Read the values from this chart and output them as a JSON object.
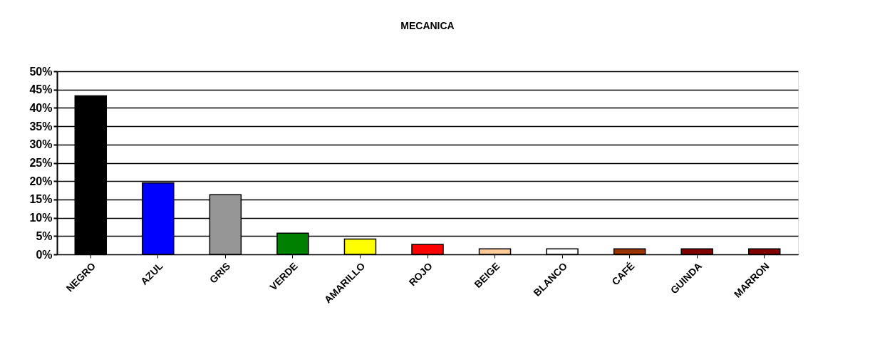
{
  "chart_data": {
    "type": "bar",
    "title": "MECANICA",
    "categories": [
      "NEGRO",
      "AZUL",
      "GRIS",
      "VERDE",
      "AMARILLO",
      "ROJO",
      "BEIGE",
      "BLANCO",
      "CAFÉ",
      "GUINDA",
      "MARRON"
    ],
    "values": [
      43.3,
      19.5,
      16.3,
      5.8,
      4.2,
      2.7,
      1.5,
      1.5,
      1.5,
      1.5,
      1.5
    ],
    "colors": [
      "#000000",
      "#0000ff",
      "#969696",
      "#008000",
      "#ffff00",
      "#ff0000",
      "#ffcc99",
      "#ffffff",
      "#993300",
      "#800000",
      "#800000"
    ],
    "ylim": [
      0,
      50
    ],
    "yticks": [
      {
        "value": 0,
        "label": "0%"
      },
      {
        "value": 5,
        "label": "5%"
      },
      {
        "value": 10,
        "label": "10%"
      },
      {
        "value": 15,
        "label": "15%"
      },
      {
        "value": 20,
        "label": "20%"
      },
      {
        "value": 25,
        "label": "25%"
      },
      {
        "value": 30,
        "label": "30%"
      },
      {
        "value": 35,
        "label": "35%"
      },
      {
        "value": 40,
        "label": "40%"
      },
      {
        "value": 45,
        "label": "45%"
      },
      {
        "value": 50,
        "label": "50%"
      }
    ],
    "grid": "y"
  }
}
